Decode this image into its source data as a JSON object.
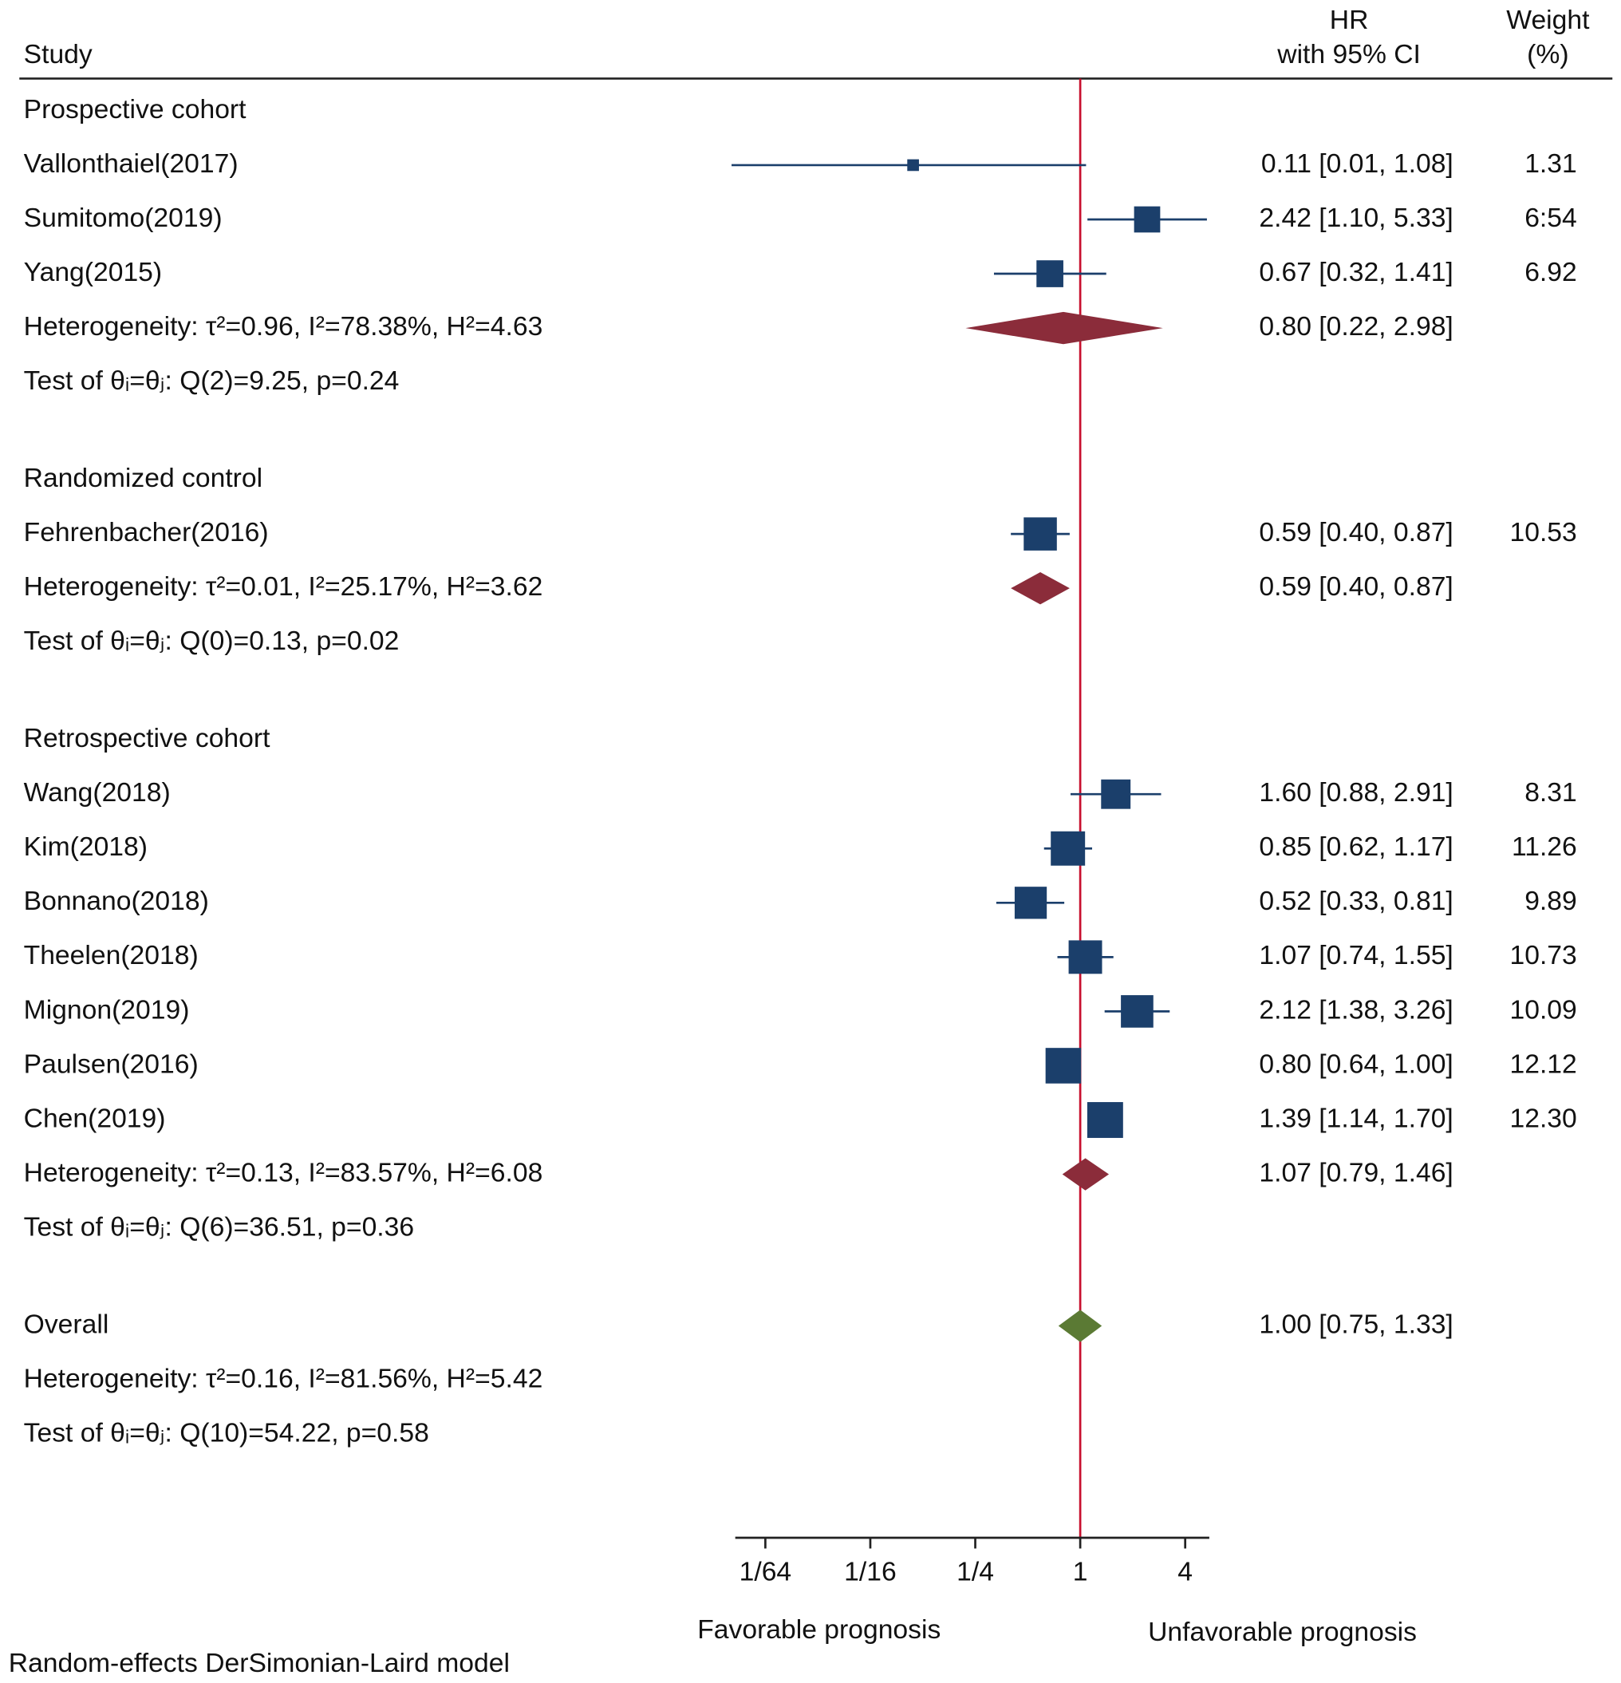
{
  "chart_data": {
    "type": "forest",
    "header": {
      "study": "Study",
      "hr": [
        "HR",
        "with 95% CI"
      ],
      "weight": [
        "Weight",
        "(%)"
      ]
    },
    "xscale": "log",
    "xlim": [
      0.0105,
      5.5
    ],
    "xticks": [
      {
        "value": 0.015625,
        "label": "1/64"
      },
      {
        "value": 0.0625,
        "label": "1/16"
      },
      {
        "value": 0.25,
        "label": "1/4"
      },
      1,
      4
    ],
    "xlabels": [
      "Favorable prognosis",
      "Unfavorable prognosis"
    ],
    "ref_line": {
      "value": 1,
      "color": "#c8102e"
    },
    "marker_color": "#1b3f6b",
    "note": "Random-effects DerSimonian-Laird model",
    "groups": [
      {
        "name": "Prospective cohort",
        "studies": [
          {
            "label": "Vallonthaiel(2017)",
            "hr": 0.11,
            "ci": [
              0.01,
              1.08
            ],
            "hr_label": "0.11 [0.01, 1.08]",
            "weight": 1.31
          },
          {
            "label": "Sumitomo(2019)",
            "hr": 2.42,
            "ci": [
              1.1,
              5.33
            ],
            "hr_label": "2.42 [1.10, 5.33]",
            "weight": 6.54,
            "weight_label": "6:54"
          },
          {
            "label": "Yang(2015)",
            "hr": 0.67,
            "ci": [
              0.32,
              1.41
            ],
            "hr_label": "0.67 [0.32, 1.41]",
            "weight": 6.92
          }
        ],
        "summary": {
          "label": "Heterogeneity: τ²=0.96, I²=78.38%, H²=4.63",
          "hr": 0.8,
          "ci": [
            0.22,
            2.98
          ],
          "hr_label": "0.80 [0.22, 2.98]",
          "color": "#8b2c3a"
        },
        "test": "Test of θᵢ=θⱼ: Q(2)=9.25, p=0.24"
      },
      {
        "name": "Randomized control",
        "studies": [
          {
            "label": "Fehrenbacher(2016)",
            "hr": 0.59,
            "ci": [
              0.4,
              0.87
            ],
            "hr_label": "0.59 [0.40, 0.87]",
            "weight": 10.53
          }
        ],
        "summary": {
          "label": "Heterogeneity: τ²=0.01, I²=25.17%, H²=3.62",
          "hr": 0.59,
          "ci": [
            0.4,
            0.87
          ],
          "hr_label": "0.59 [0.40, 0.87]",
          "color": "#8b2c3a"
        },
        "test": "Test of θᵢ=θⱼ: Q(0)=0.13, p=0.02"
      },
      {
        "name": "Retrospective cohort",
        "studies": [
          {
            "label": "Wang(2018)",
            "hr": 1.6,
            "ci": [
              0.88,
              2.91
            ],
            "hr_label": "1.60 [0.88, 2.91]",
            "weight": 8.31
          },
          {
            "label": "Kim(2018)",
            "hr": 0.85,
            "ci": [
              0.62,
              1.17
            ],
            "hr_label": "0.85 [0.62, 1.17]",
            "weight": 11.26
          },
          {
            "label": "Bonnano(2018)",
            "hr": 0.52,
            "ci": [
              0.33,
              0.81
            ],
            "hr_label": "0.52 [0.33, 0.81]",
            "weight": 9.89
          },
          {
            "label": "Theelen(2018)",
            "hr": 1.07,
            "ci": [
              0.74,
              1.55
            ],
            "hr_label": "1.07 [0.74, 1.55]",
            "weight": 10.73
          },
          {
            "label": "Mignon(2019)",
            "hr": 2.12,
            "ci": [
              1.38,
              3.26
            ],
            "hr_label": "2.12 [1.38, 3.26]",
            "weight": 10.09
          },
          {
            "label": "Paulsen(2016)",
            "hr": 0.8,
            "ci": [
              0.64,
              1.0
            ],
            "hr_label": "0.80 [0.64, 1.00]",
            "weight": 12.12
          },
          {
            "label": "Chen(2019)",
            "hr": 1.39,
            "ci": [
              1.14,
              1.7
            ],
            "hr_label": "1.39 [1.14, 1.70]",
            "weight": 12.3,
            "weight_label": "12.30"
          }
        ],
        "summary": {
          "label": "Heterogeneity: τ²=0.13, I²=83.57%, H²=6.08",
          "hr": 1.07,
          "ci": [
            0.79,
            1.46
          ],
          "hr_label": "1.07 [0.79, 1.46]",
          "color": "#8b2c3a"
        },
        "test": "Test of θᵢ=θⱼ: Q(6)=36.51, p=0.36"
      },
      {
        "name": "Overall",
        "hr": 1.0,
        "ci": [
          0.75,
          1.33
        ],
        "hr_label": "1.00 [0.75, 1.33]",
        "diamond_color": "#5b7a34",
        "heterogeneity": "Heterogeneity: τ²=0.16, I²=81.56%, H²=5.42",
        "test": "Test of θᵢ=θⱼ: Q(10)=54.22, p=0.58"
      }
    ]
  }
}
